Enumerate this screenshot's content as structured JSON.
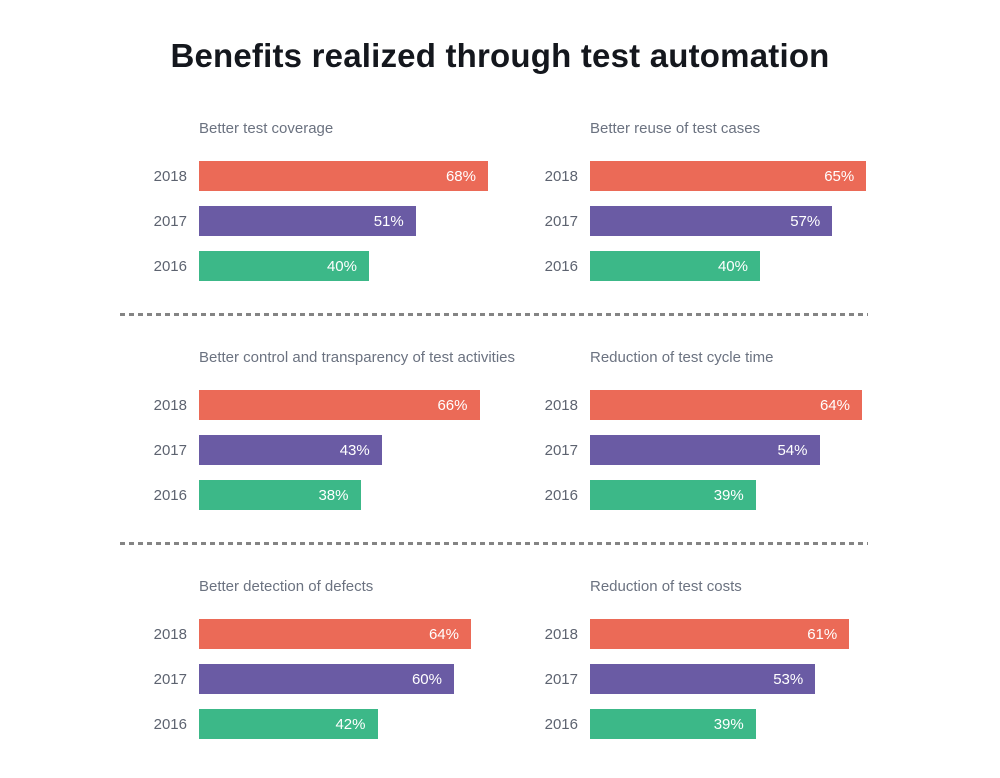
{
  "page_title": "Benefits realized through test automation",
  "series_colors": {
    "2018": "#eb6a57",
    "2017": "#6a5ba4",
    "2016": "#3cb888"
  },
  "text_colors": {
    "page_title": "#14171d",
    "chart_title": "#6b7280",
    "year_label": "#5d6370",
    "bar_value_label": "#ffffff",
    "divider": "#848484",
    "background": "#ffffff"
  },
  "chart_data": [
    {
      "type": "bar",
      "orientation": "horizontal",
      "title": "Better test coverage",
      "categories": [
        "2018",
        "2017",
        "2016"
      ],
      "values": [
        68,
        51,
        40
      ],
      "value_labels": [
        "68%",
        "51%",
        "40%"
      ],
      "xlim": [
        0,
        100
      ],
      "grid": false,
      "legend": "none"
    },
    {
      "type": "bar",
      "orientation": "horizontal",
      "title": "Better reuse of test cases",
      "categories": [
        "2018",
        "2017",
        "2016"
      ],
      "values": [
        65,
        57,
        40
      ],
      "value_labels": [
        "65%",
        "57%",
        "40%"
      ],
      "xlim": [
        0,
        100
      ],
      "grid": false,
      "legend": "none"
    },
    {
      "type": "bar",
      "orientation": "horizontal",
      "title": "Better control and transparency of test activities",
      "categories": [
        "2018",
        "2017",
        "2016"
      ],
      "values": [
        66,
        43,
        38
      ],
      "value_labels": [
        "66%",
        "43%",
        "38%"
      ],
      "xlim": [
        0,
        100
      ],
      "grid": false,
      "legend": "none"
    },
    {
      "type": "bar",
      "orientation": "horizontal",
      "title": "Reduction of test cycle time",
      "categories": [
        "2018",
        "2017",
        "2016"
      ],
      "values": [
        64,
        54,
        39
      ],
      "value_labels": [
        "64%",
        "54%",
        "39%"
      ],
      "xlim": [
        0,
        100
      ],
      "grid": false,
      "legend": "none"
    },
    {
      "type": "bar",
      "orientation": "horizontal",
      "title": "Better detection of defects",
      "categories": [
        "2018",
        "2017",
        "2016"
      ],
      "values": [
        64,
        60,
        42
      ],
      "value_labels": [
        "64%",
        "60%",
        "42%"
      ],
      "xlim": [
        0,
        100
      ],
      "grid": false,
      "legend": "none"
    },
    {
      "type": "bar",
      "orientation": "horizontal",
      "title": "Reduction of test costs",
      "categories": [
        "2018",
        "2017",
        "2016"
      ],
      "values": [
        61,
        53,
        39
      ],
      "value_labels": [
        "61%",
        "53%",
        "39%"
      ],
      "xlim": [
        0,
        100
      ],
      "grid": false,
      "legend": "none"
    }
  ],
  "layout_hints": {
    "grid": "2 columns x 3 rows of mini bar charts",
    "dividers": "dashed horizontal separators between chart rows"
  }
}
